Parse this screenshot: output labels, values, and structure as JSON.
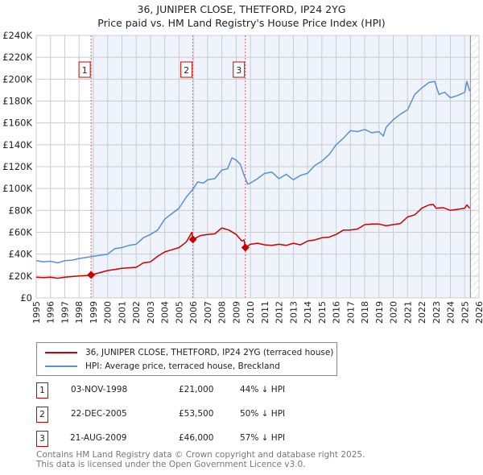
{
  "title": "36, JUNIPER CLOSE, THETFORD, IP24 2YG",
  "subtitle": "Price paid vs. HM Land Registry's House Price Index (HPI)",
  "colors": {
    "property": "#cc0000",
    "hpi": "#5b8fd4",
    "shade": "#eef3fc",
    "grid": "#cccccc"
  },
  "chart_data": {
    "type": "line",
    "title": "Price paid vs. HM Land Registry's House Price Index (HPI)",
    "xlim": [
      1995,
      2026
    ],
    "ylim": [
      0,
      240000
    ],
    "x_ticks": [
      "1995",
      "1996",
      "1997",
      "1998",
      "1999",
      "2000",
      "2001",
      "2002",
      "2003",
      "2004",
      "2005",
      "2006",
      "2007",
      "2008",
      "2009",
      "2010",
      "2011",
      "2012",
      "2013",
      "2014",
      "2015",
      "2016",
      "2017",
      "2018",
      "2019",
      "2020",
      "2021",
      "2022",
      "2023",
      "2024",
      "2025",
      "2026"
    ],
    "y_ticks": [
      {
        "v": 0,
        "label": "£0"
      },
      {
        "v": 20000,
        "label": "£20K"
      },
      {
        "v": 40000,
        "label": "£40K"
      },
      {
        "v": 60000,
        "label": "£60K"
      },
      {
        "v": 80000,
        "label": "£80K"
      },
      {
        "v": 100000,
        "label": "£100K"
      },
      {
        "v": 120000,
        "label": "£120K"
      },
      {
        "v": 140000,
        "label": "£140K"
      },
      {
        "v": 160000,
        "label": "£160K"
      },
      {
        "v": 180000,
        "label": "£180K"
      },
      {
        "v": 200000,
        "label": "£200K"
      },
      {
        "v": 220000,
        "label": "£220K"
      },
      {
        "v": 240000,
        "label": "£240K"
      }
    ],
    "grid": true,
    "data_end": 2025.4,
    "series": [
      {
        "name": "36, JUNIPER CLOSE, THETFORD, IP24 2YG (terraced house)",
        "color": "#cc0000",
        "x": [
          1995,
          1995.5,
          1996,
          1996.5,
          1997,
          1997.5,
          1998,
          1998.5,
          1998.84,
          1999.3,
          2000,
          2000.5,
          2001,
          2001.5,
          2002,
          2002.5,
          2003,
          2003.5,
          2004,
          2004.5,
          2005,
          2005.5,
          2005.9,
          2005.97,
          2006.5,
          2007,
          2007.5,
          2008,
          2008.5,
          2009,
          2009.4,
          2009.55,
          2009.64,
          2010,
          2010.5,
          2011,
          2011.5,
          2012,
          2012.5,
          2013,
          2013.5,
          2014,
          2014.5,
          2015,
          2015.5,
          2016,
          2016.5,
          2017,
          2017.5,
          2018,
          2018.5,
          2019,
          2019.5,
          2020,
          2020.5,
          2021,
          2021.5,
          2022,
          2022.5,
          2022.8,
          2023,
          2023.5,
          2024,
          2024.5,
          2025,
          2025.15,
          2025.35
        ],
        "y": [
          19000,
          18500,
          19000,
          18000,
          19000,
          19500,
          20000,
          20500,
          21000,
          22500,
          25000,
          26000,
          27000,
          27500,
          28000,
          32000,
          33000,
          38000,
          42000,
          44000,
          46000,
          51000,
          60000,
          53500,
          57000,
          58000,
          58500,
          64000,
          62000,
          58000,
          52000,
          53000,
          46000,
          49000,
          50000,
          48500,
          48000,
          49000,
          48000,
          50000,
          48500,
          52000,
          53000,
          55000,
          55500,
          58000,
          62000,
          62000,
          63000,
          67000,
          67500,
          67500,
          66000,
          67000,
          68000,
          74000,
          76000,
          82000,
          85000,
          85500,
          82000,
          82500,
          80000,
          81000,
          82000,
          85000,
          82000
        ]
      },
      {
        "name": "HPI: Average price, terraced house, Breckland",
        "color": "#5b8fd4",
        "x": [
          1995,
          1995.5,
          1996,
          1996.5,
          1997,
          1997.5,
          1998,
          1998.5,
          1999,
          1999.5,
          2000,
          2000.5,
          2001,
          2001.5,
          2002,
          2002.5,
          2003,
          2003.5,
          2004,
          2004.5,
          2005,
          2005.5,
          2006,
          2006.3,
          2006.7,
          2007,
          2007.5,
          2008,
          2008.4,
          2008.7,
          2009,
          2009.3,
          2009.5,
          2009.8,
          2010,
          2010.5,
          2011,
          2011.5,
          2012,
          2012.5,
          2013,
          2013.5,
          2014,
          2014.5,
          2015,
          2015.5,
          2016,
          2016.5,
          2017,
          2017.5,
          2018,
          2018.5,
          2019,
          2019.3,
          2019.5,
          2020,
          2020.5,
          2021,
          2021.5,
          2022,
          2022.5,
          2022.9,
          2023.2,
          2023.6,
          2024,
          2024.5,
          2025,
          2025.15,
          2025.35
        ],
        "y": [
          34000,
          33000,
          33500,
          32000,
          34000,
          34500,
          36000,
          37000,
          38000,
          39000,
          40000,
          45000,
          46000,
          48000,
          49000,
          55000,
          58000,
          62000,
          72000,
          77000,
          82000,
          92000,
          100000,
          106000,
          105000,
          108000,
          109000,
          117000,
          118000,
          128000,
          126000,
          122000,
          114000,
          104000,
          105000,
          109000,
          114000,
          115000,
          109000,
          113000,
          108000,
          112000,
          114000,
          121000,
          125000,
          131000,
          140000,
          146000,
          153000,
          152000,
          154000,
          151000,
          152000,
          148000,
          156000,
          163000,
          168000,
          172000,
          186000,
          192000,
          197000,
          198000,
          186000,
          188000,
          183000,
          185000,
          188000,
          198000,
          189000
        ]
      }
    ],
    "sales": [
      {
        "id": "1",
        "x": 1998.84,
        "price": 21000
      },
      {
        "id": "2",
        "x": 2005.97,
        "price": 53500
      },
      {
        "id": "3",
        "x": 2009.64,
        "price": 46000
      }
    ]
  },
  "legend": {
    "property": "36, JUNIPER CLOSE, THETFORD, IP24 2YG (terraced house)",
    "hpi": "HPI: Average price, terraced house, Breckland"
  },
  "sales_table": [
    {
      "num": "1",
      "date": "03-NOV-1998",
      "price": "£21,000",
      "vs_hpi": "44% ↓ HPI"
    },
    {
      "num": "2",
      "date": "22-DEC-2005",
      "price": "£53,500",
      "vs_hpi": "50% ↓ HPI"
    },
    {
      "num": "3",
      "date": "21-AUG-2009",
      "price": "£46,000",
      "vs_hpi": "57% ↓ HPI"
    }
  ],
  "footer": {
    "line1": "Contains HM Land Registry data © Crown copyright and database right 2025.",
    "line2": "This data is licensed under the Open Government Licence v3.0."
  }
}
